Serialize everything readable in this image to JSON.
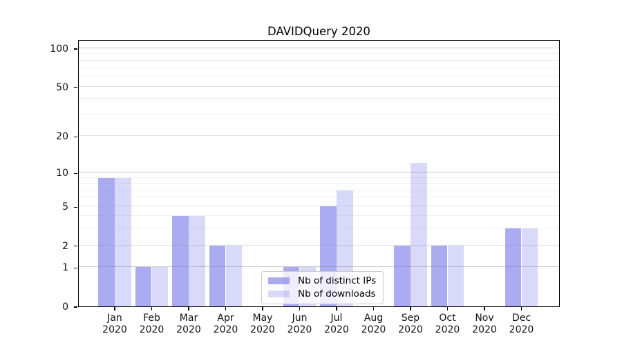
{
  "chart_data": {
    "type": "bar",
    "title": "DAVIDQuery 2020",
    "xlabel": "",
    "ylabel": "",
    "categories": [
      "Jan",
      "Feb",
      "Mar",
      "Apr",
      "May",
      "Jun",
      "Jul",
      "Aug",
      "Sep",
      "Oct",
      "Nov",
      "Dec"
    ],
    "category_year": "2020",
    "series": [
      {
        "name": "Nb of distinct IPs",
        "color": "rgba(119,119,234,0.62)",
        "values": [
          9,
          1,
          4,
          2,
          0,
          1,
          5,
          0,
          2,
          2,
          0,
          3
        ]
      },
      {
        "name": "Nb of downloads",
        "color": "rgba(119,119,234,0.28)",
        "values": [
          9,
          1,
          4,
          2,
          0,
          1,
          7,
          0,
          12,
          2,
          0,
          3
        ]
      }
    ],
    "y_axis": {
      "scale": "log-like (0,1,2,5,10,20,50,100)",
      "tick_values": [
        0,
        1,
        2,
        5,
        10,
        20,
        50,
        100
      ],
      "tick_labels": [
        "0",
        "1",
        "2",
        "5",
        "10",
        "20",
        "50",
        "100"
      ],
      "minor_gridline_values": [
        3,
        4,
        6,
        7,
        8,
        9,
        30,
        40,
        60,
        70,
        80,
        90
      ],
      "decade_gridline_values": [
        1,
        10,
        100
      ]
    },
    "legend": {
      "position": "lower-center",
      "entries": [
        "Nb of distinct IPs",
        "Nb of downloads"
      ]
    },
    "grid": true,
    "background_color": "#ffffff"
  }
}
